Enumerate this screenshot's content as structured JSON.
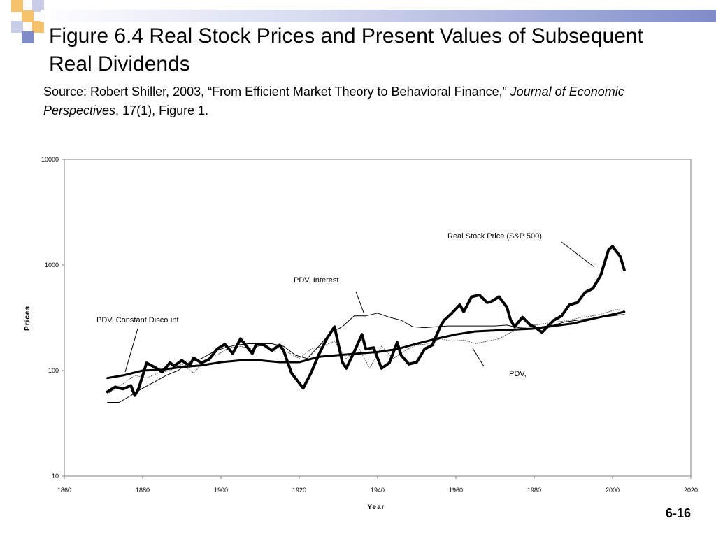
{
  "slide": {
    "title": "Figure 6.4 Real Stock Prices and Present Values of Subsequent Real Dividends",
    "source_plain": "Source: Robert Shiller, 2003, “From Efficient Market Theory to Behavioral Finance,” ",
    "source_italic": "Journal of Economic Perspectives",
    "source_tail": ", 17(1), Figure 1.",
    "slide_number": "6-16",
    "decor_colors": [
      "#f5c26b",
      "#c9cde8",
      "#7f8cc9"
    ]
  },
  "chart_data": {
    "type": "line",
    "xlabel": "Year",
    "ylabel": "Prices",
    "xlim": [
      1860,
      2020
    ],
    "ylim": [
      10,
      10000
    ],
    "yscale": "log",
    "grid": false,
    "x_ticks": [
      "1860",
      "1880",
      "1900",
      "1920",
      "1940",
      "1960",
      "1980",
      "2000",
      "2020"
    ],
    "y_ticks": [
      "10",
      "100",
      "1000",
      "10000"
    ],
    "annotations": [
      {
        "text": "Real Stock Price (S&P 500)",
        "series": "real_stock_price"
      },
      {
        "text": "PDV, Interest",
        "series": "pdv_interest"
      },
      {
        "text": "PDV, Constant Discount",
        "series": "pdv_constant_discount"
      },
      {
        "text": "PDV,",
        "series": "pdv_consumption"
      }
    ],
    "series": [
      {
        "id": "real_stock_price",
        "style": "thick",
        "x": [
          1871,
          1873,
          1875,
          1877,
          1878,
          1879,
          1881,
          1883,
          1885,
          1887,
          1888,
          1890,
          1892,
          1893,
          1895,
          1897,
          1899,
          1901,
          1903,
          1905,
          1906,
          1908,
          1909,
          1911,
          1913,
          1915,
          1916,
          1918,
          1919,
          1921,
          1923,
          1925,
          1927,
          1929,
          1931,
          1932,
          1934,
          1936,
          1937,
          1939,
          1941,
          1943,
          1945,
          1946,
          1948,
          1950,
          1952,
          1954,
          1956,
          1957,
          1959,
          1961,
          1962,
          1964,
          1966,
          1968,
          1969,
          1971,
          1973,
          1974,
          1975,
          1977,
          1979,
          1980,
          1982,
          1985,
          1987,
          1989,
          1991,
          1993,
          1995,
          1997,
          1999,
          2000,
          2002,
          2003
        ],
        "y": [
          63,
          70,
          67,
          72,
          58,
          68,
          118,
          108,
          97,
          119,
          110,
          125,
          110,
          132,
          118,
          128,
          160,
          178,
          145,
          200,
          180,
          145,
          178,
          175,
          155,
          175,
          155,
          95,
          85,
          68,
          95,
          142,
          200,
          260,
          120,
          105,
          150,
          220,
          160,
          165,
          105,
          118,
          185,
          140,
          115,
          120,
          160,
          175,
          260,
          300,
          350,
          420,
          360,
          500,
          520,
          440,
          450,
          500,
          400,
          300,
          260,
          320,
          270,
          260,
          230,
          300,
          330,
          420,
          440,
          550,
          600,
          800,
          1400,
          1500,
          1200,
          900
        ]
      },
      {
        "id": "pdv_constant_discount",
        "style": "medium",
        "x": [
          1871,
          1875,
          1880,
          1885,
          1890,
          1895,
          1900,
          1905,
          1910,
          1915,
          1920,
          1925,
          1930,
          1935,
          1940,
          1945,
          1950,
          1955,
          1960,
          1965,
          1970,
          1975,
          1980,
          1985,
          1990,
          1995,
          2000,
          2003
        ],
        "y": [
          85,
          90,
          100,
          102,
          108,
          112,
          120,
          125,
          125,
          120,
          120,
          135,
          140,
          145,
          150,
          160,
          180,
          200,
          220,
          235,
          240,
          245,
          250,
          265,
          280,
          310,
          340,
          360
        ]
      },
      {
        "id": "pdv_interest",
        "style": "thin",
        "x": [
          1871,
          1874,
          1877,
          1880,
          1883,
          1886,
          1889,
          1892,
          1895,
          1898,
          1901,
          1904,
          1907,
          1910,
          1913,
          1916,
          1919,
          1922,
          1925,
          1928,
          1931,
          1934,
          1937,
          1940,
          1943,
          1946,
          1949,
          1952,
          1955,
          1958,
          1961,
          1964,
          1967,
          1970,
          1973,
          1976,
          1979,
          1982,
          1985,
          1988,
          1991,
          1994,
          1997,
          2000,
          2003
        ],
        "y": [
          50,
          50,
          58,
          68,
          78,
          90,
          100,
          120,
          130,
          150,
          165,
          175,
          180,
          180,
          180,
          170,
          140,
          130,
          170,
          230,
          260,
          330,
          330,
          350,
          320,
          300,
          260,
          255,
          260,
          265,
          265,
          265,
          265,
          265,
          270,
          255,
          250,
          260,
          270,
          290,
          300,
          310,
          320,
          330,
          340
        ]
      },
      {
        "id": "pdv_consumption",
        "style": "dotted",
        "x": [
          1871,
          1875,
          1878,
          1881,
          1884,
          1887,
          1890,
          1893,
          1896,
          1899,
          1902,
          1905,
          1908,
          1911,
          1914,
          1917,
          1920,
          1923,
          1926,
          1929,
          1932,
          1935,
          1938,
          1941,
          1944,
          1947,
          1950,
          1953,
          1956,
          1959,
          1962,
          1965,
          1968,
          1971,
          1974,
          1977,
          1980,
          1983,
          1986,
          1989,
          1992,
          1995,
          1998,
          2001,
          2003
        ],
        "y": [
          60,
          75,
          90,
          85,
          95,
          100,
          115,
          95,
          125,
          140,
          165,
          170,
          160,
          180,
          150,
          150,
          130,
          160,
          170,
          190,
          130,
          170,
          105,
          170,
          130,
          155,
          175,
          180,
          200,
          190,
          195,
          180,
          190,
          200,
          230,
          250,
          270,
          280,
          290,
          300,
          320,
          330,
          350,
          380,
          370
        ]
      }
    ]
  }
}
